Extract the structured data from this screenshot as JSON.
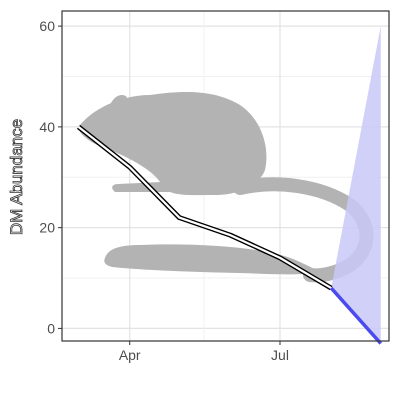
{
  "chart_data": {
    "type": "line",
    "title": "",
    "xlabel": "",
    "ylabel": "DM Abundance",
    "x_ticks": [
      "Apr",
      "Jul"
    ],
    "y_ticks": [
      0,
      20,
      40,
      60
    ],
    "ylim": [
      -2.5,
      63
    ],
    "xlim": [
      "2016-02-20",
      "2016-09-05"
    ],
    "grid": true,
    "background_image": "kangaroo-rat-silhouette",
    "colors": {
      "observed": "#000000",
      "forecast": "#4a4aee",
      "interval_fill": "#c8c8f8",
      "silhouette": "#b3b3b3"
    },
    "series": [
      {
        "x": [
          "2016-03-01",
          "2016-04-01",
          "2016-05-01",
          "2016-06-01",
          "2016-07-01",
          "2016-08-01"
        ],
        "y": [
          40,
          32,
          22,
          18.5,
          14,
          8
        ]
      },
      {
        "x": [
          "2016-08-01",
          "2016-08-31"
        ],
        "y": [
          8,
          -3
        ]
      }
    ],
    "interval": {
      "x": [
        "2016-08-01",
        "2016-08-31"
      ],
      "lower": [
        8,
        -3
      ],
      "upper": [
        8,
        60
      ]
    }
  }
}
